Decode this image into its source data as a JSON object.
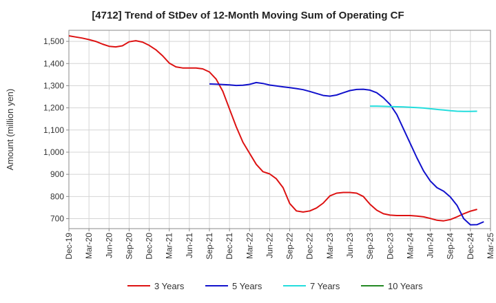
{
  "chart_data": {
    "type": "line",
    "title": "[4712]  Trend of StDev of 12-Month Moving Sum of Operating CF",
    "xlabel": "",
    "ylabel": "Amount (million yen)",
    "ylim": [
      655,
      1550
    ],
    "yticks": [
      700,
      800,
      900,
      1000,
      1100,
      1200,
      1300,
      1400,
      1500
    ],
    "ytick_labels": [
      "700",
      "800",
      "900",
      "1,000",
      "1,100",
      "1,200",
      "1,300",
      "1,400",
      "1,500"
    ],
    "xtick_labels": [
      "Dec-19",
      "Mar-20",
      "Jun-20",
      "Sep-20",
      "Dec-20",
      "Mar-21",
      "Jun-21",
      "Sep-21",
      "Dec-21",
      "Mar-22",
      "Jun-22",
      "Sep-22",
      "Dec-22",
      "Mar-23",
      "Jun-23",
      "Sep-23",
      "Dec-23",
      "Mar-24",
      "Jun-24",
      "Sep-24",
      "Dec-24",
      "Mar-25"
    ],
    "grid": true,
    "legend_position": "bottom",
    "series": [
      {
        "name": "3 Years",
        "color": "#dd1111",
        "start_index": 0,
        "values": [
          1525,
          1520,
          1515,
          1508,
          1500,
          1488,
          1478,
          1475,
          1480,
          1498,
          1503,
          1497,
          1482,
          1462,
          1435,
          1402,
          1385,
          1380,
          1380,
          1380,
          1376,
          1362,
          1330,
          1275,
          1195,
          1115,
          1045,
          995,
          945,
          912,
          902,
          880,
          840,
          768,
          735,
          730,
          735,
          748,
          770,
          803,
          815,
          818,
          818,
          815,
          800,
          765,
          738,
          722,
          716,
          714,
          714,
          714,
          712,
          708,
          701,
          693,
          690,
          696,
          708,
          722,
          734,
          742
        ]
      },
      {
        "name": "5 Years",
        "color": "#1111cc",
        "start_index": 21,
        "values": [
          1308,
          1307,
          1305,
          1304,
          1301,
          1302,
          1306,
          1314,
          1310,
          1303,
          1299,
          1295,
          1291,
          1287,
          1282,
          1274,
          1265,
          1256,
          1253,
          1258,
          1268,
          1278,
          1283,
          1284,
          1280,
          1268,
          1245,
          1215,
          1170,
          1105,
          1040,
          975,
          915,
          870,
          840,
          824,
          798,
          760,
          700,
          672,
          673,
          686
        ]
      },
      {
        "name": "7 Years",
        "color": "#22dddd",
        "start_index": 45,
        "values": [
          1208,
          1208,
          1207,
          1206,
          1205,
          1204,
          1203,
          1201,
          1199,
          1196,
          1193,
          1190,
          1187,
          1185,
          1184,
          1184,
          1185
        ]
      },
      {
        "name": "10 Years",
        "color": "#228822",
        "start_index": 0,
        "values": []
      }
    ]
  }
}
